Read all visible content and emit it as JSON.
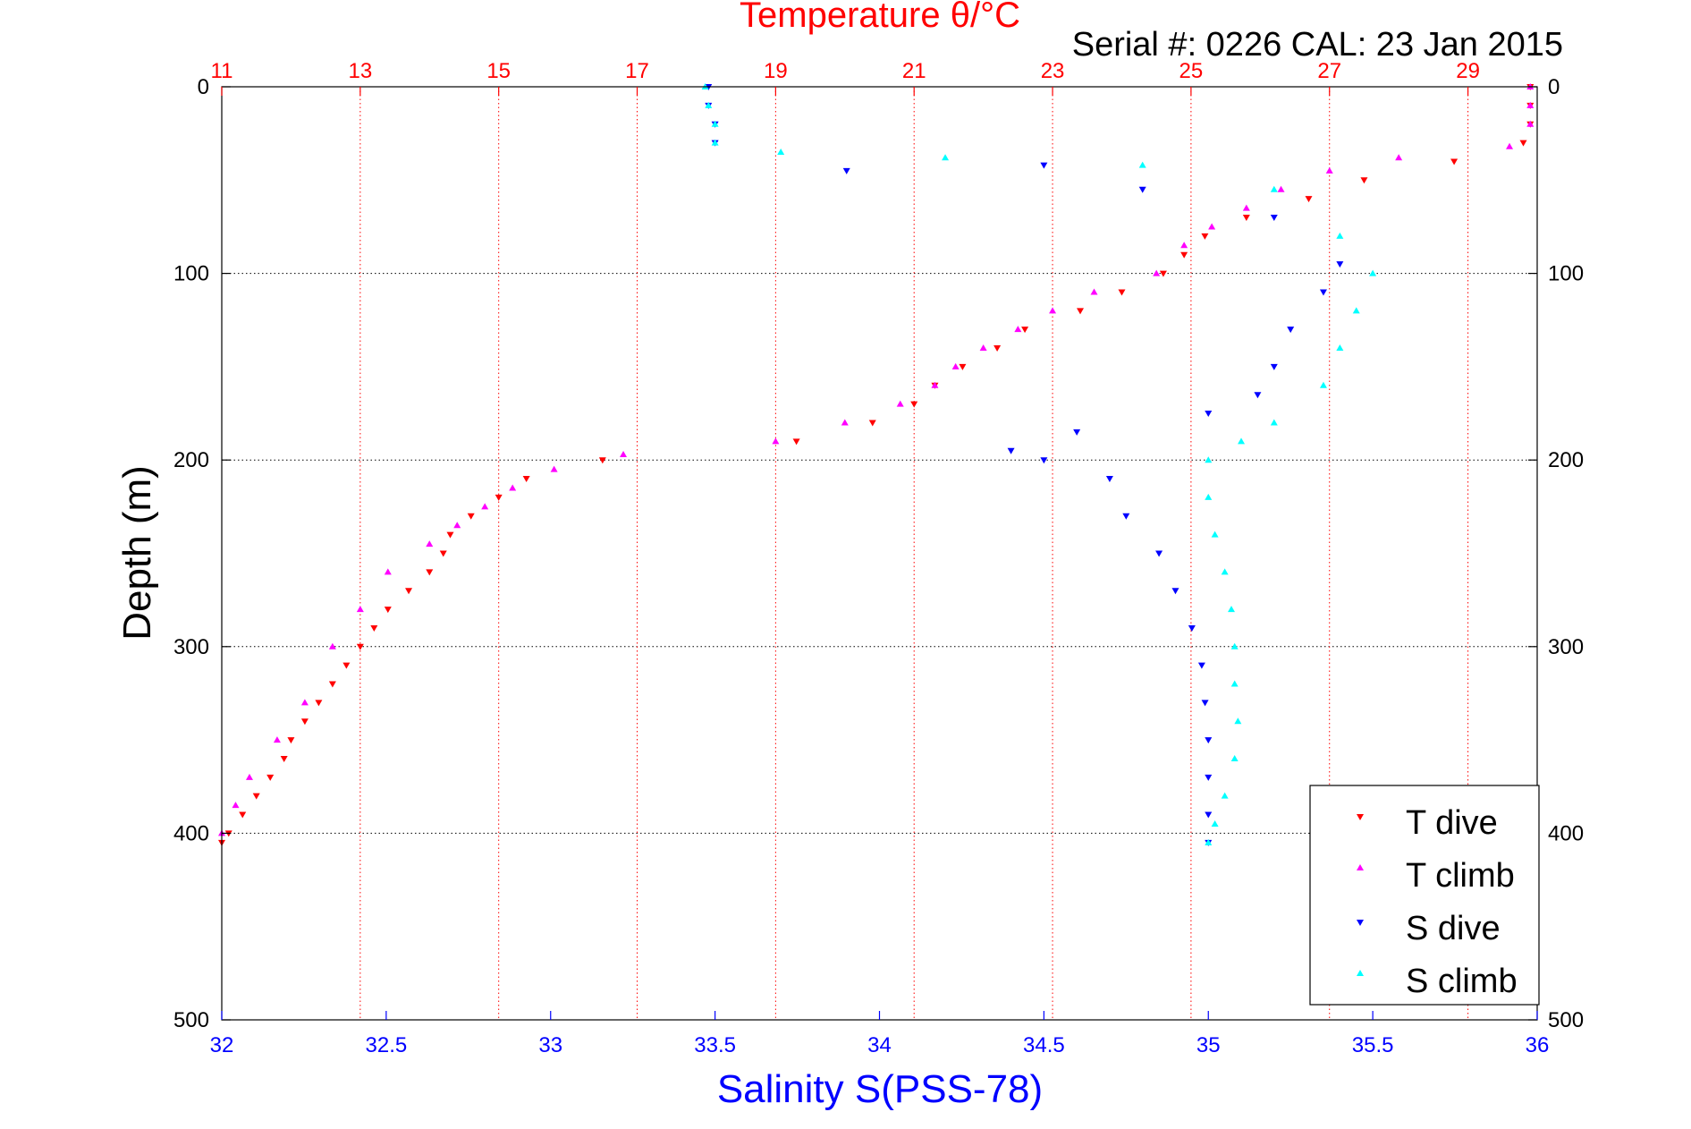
{
  "chart_data": {
    "type": "scatter",
    "title": "Temperature θ/°C",
    "subtitle": "Serial #: 0226  CAL: 23 Jan 2015",
    "xlabel_bottom": "Salinity S(PSS-78)",
    "xlabel_top": "Temperature θ/°C",
    "ylabel": "Depth (m)",
    "xlim_bottom": [
      32,
      36
    ],
    "xticks_bottom": [
      "32",
      "32.5",
      "33",
      "33.5",
      "34",
      "34.5",
      "35",
      "35.5",
      "36"
    ],
    "xlim_top": [
      11,
      30
    ],
    "xticks_top": [
      "11",
      "13",
      "15",
      "17",
      "19",
      "21",
      "23",
      "25",
      "27",
      "29"
    ],
    "ylim": [
      0,
      500
    ],
    "y_inverted": true,
    "yticks": [
      "0",
      "100",
      "200",
      "300",
      "400",
      "500"
    ],
    "grid": "dotted",
    "legend_position": "bottom-right",
    "colors": {
      "t_dive": "#ff0000",
      "t_climb": "#ff00ff",
      "s_dive": "#0000ff",
      "s_climb": "#00ffff",
      "title": "#ff0000",
      "salinity_axis": "#0000ff",
      "temp_axis": "#ff0000"
    },
    "series": [
      {
        "name": "T dive",
        "axis": "temperature",
        "marker": "triangle-down",
        "points": [
          [
            29.9,
            0
          ],
          [
            29.9,
            10
          ],
          [
            29.9,
            20
          ],
          [
            29.8,
            30
          ],
          [
            28.8,
            40
          ],
          [
            27.5,
            50
          ],
          [
            26.7,
            60
          ],
          [
            25.8,
            70
          ],
          [
            25.2,
            80
          ],
          [
            24.9,
            90
          ],
          [
            24.6,
            100
          ],
          [
            24.0,
            110
          ],
          [
            23.4,
            120
          ],
          [
            22.6,
            130
          ],
          [
            22.2,
            140
          ],
          [
            21.7,
            150
          ],
          [
            21.3,
            160
          ],
          [
            21.0,
            170
          ],
          [
            20.4,
            180
          ],
          [
            19.3,
            190
          ],
          [
            16.5,
            200
          ],
          [
            15.4,
            210
          ],
          [
            15.0,
            220
          ],
          [
            14.6,
            230
          ],
          [
            14.3,
            240
          ],
          [
            14.2,
            250
          ],
          [
            14.0,
            260
          ],
          [
            13.7,
            270
          ],
          [
            13.4,
            280
          ],
          [
            13.2,
            290
          ],
          [
            13.0,
            300
          ],
          [
            12.8,
            310
          ],
          [
            12.6,
            320
          ],
          [
            12.4,
            330
          ],
          [
            12.2,
            340
          ],
          [
            12.0,
            350
          ],
          [
            11.9,
            360
          ],
          [
            11.7,
            370
          ],
          [
            11.5,
            380
          ],
          [
            11.3,
            390
          ],
          [
            11.1,
            400
          ],
          [
            11.0,
            405
          ]
        ]
      },
      {
        "name": "T climb",
        "axis": "temperature",
        "marker": "triangle-up",
        "points": [
          [
            29.9,
            0
          ],
          [
            29.9,
            10
          ],
          [
            29.9,
            20
          ],
          [
            29.6,
            32
          ],
          [
            28.0,
            38
          ],
          [
            27.0,
            45
          ],
          [
            26.3,
            55
          ],
          [
            25.8,
            65
          ],
          [
            25.3,
            75
          ],
          [
            24.9,
            85
          ],
          [
            24.5,
            100
          ],
          [
            23.6,
            110
          ],
          [
            23.0,
            120
          ],
          [
            22.5,
            130
          ],
          [
            22.0,
            140
          ],
          [
            21.6,
            150
          ],
          [
            21.3,
            160
          ],
          [
            20.8,
            170
          ],
          [
            20.0,
            180
          ],
          [
            19.0,
            190
          ],
          [
            16.8,
            197
          ],
          [
            15.8,
            205
          ],
          [
            15.2,
            215
          ],
          [
            14.8,
            225
          ],
          [
            14.4,
            235
          ],
          [
            14.0,
            245
          ],
          [
            13.4,
            260
          ],
          [
            13.0,
            280
          ],
          [
            12.6,
            300
          ],
          [
            12.2,
            330
          ],
          [
            11.8,
            350
          ],
          [
            11.4,
            370
          ],
          [
            11.2,
            385
          ],
          [
            11.0,
            400
          ]
        ]
      },
      {
        "name": "S dive",
        "axis": "salinity",
        "marker": "triangle-down",
        "points": [
          [
            33.48,
            0
          ],
          [
            33.48,
            10
          ],
          [
            33.5,
            20
          ],
          [
            33.5,
            30
          ],
          [
            33.9,
            45
          ],
          [
            34.5,
            42
          ],
          [
            34.8,
            55
          ],
          [
            35.2,
            70
          ],
          [
            35.4,
            95
          ],
          [
            35.35,
            110
          ],
          [
            35.25,
            130
          ],
          [
            35.2,
            150
          ],
          [
            35.15,
            165
          ],
          [
            35.0,
            175
          ],
          [
            34.6,
            185
          ],
          [
            34.4,
            195
          ],
          [
            34.5,
            200
          ],
          [
            34.7,
            210
          ],
          [
            34.75,
            230
          ],
          [
            34.85,
            250
          ],
          [
            34.9,
            270
          ],
          [
            34.95,
            290
          ],
          [
            34.98,
            310
          ],
          [
            34.99,
            330
          ],
          [
            35.0,
            350
          ],
          [
            35.0,
            370
          ],
          [
            35.0,
            390
          ],
          [
            35.0,
            405
          ]
        ]
      },
      {
        "name": "S climb",
        "axis": "salinity",
        "marker": "triangle-up",
        "points": [
          [
            33.47,
            0
          ],
          [
            33.48,
            10
          ],
          [
            33.5,
            20
          ],
          [
            33.5,
            30
          ],
          [
            33.7,
            35
          ],
          [
            34.2,
            38
          ],
          [
            34.8,
            42
          ],
          [
            35.2,
            55
          ],
          [
            35.4,
            80
          ],
          [
            35.5,
            100
          ],
          [
            35.45,
            120
          ],
          [
            35.4,
            140
          ],
          [
            35.35,
            160
          ],
          [
            35.2,
            180
          ],
          [
            35.1,
            190
          ],
          [
            35.0,
            200
          ],
          [
            35.0,
            220
          ],
          [
            35.02,
            240
          ],
          [
            35.05,
            260
          ],
          [
            35.07,
            280
          ],
          [
            35.08,
            300
          ],
          [
            35.08,
            320
          ],
          [
            35.09,
            340
          ],
          [
            35.08,
            360
          ],
          [
            35.05,
            380
          ],
          [
            35.02,
            395
          ],
          [
            35.0,
            405
          ]
        ]
      }
    ]
  }
}
